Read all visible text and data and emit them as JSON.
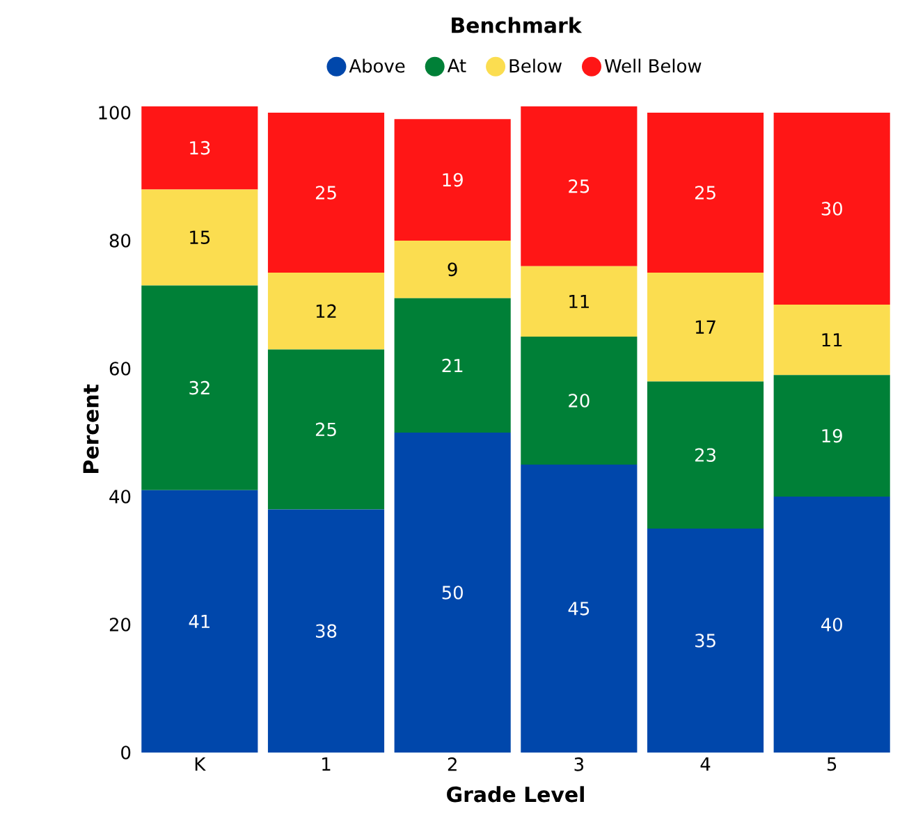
{
  "chart_data": {
    "type": "bar",
    "stacked": true,
    "legend_title": "Benchmark",
    "xlabel": "Grade Level",
    "ylabel": "Percent",
    "categories": [
      "K",
      "1",
      "2",
      "3",
      "4",
      "5"
    ],
    "series": [
      {
        "name": "Above",
        "color": "#0047ab",
        "values": [
          41,
          38,
          50,
          45,
          35,
          40
        ]
      },
      {
        "name": "At",
        "color": "#008037",
        "values": [
          32,
          25,
          21,
          20,
          23,
          19
        ]
      },
      {
        "name": "Below",
        "color": "#fbdd50",
        "values": [
          15,
          12,
          9,
          11,
          17,
          11
        ]
      },
      {
        "name": "Well Below",
        "color": "#ff1616",
        "values": [
          13,
          25,
          19,
          25,
          25,
          30
        ]
      }
    ],
    "ylim": [
      0,
      101
    ],
    "yticks": [
      0,
      20,
      40,
      60,
      80,
      100
    ],
    "data_labels": true,
    "legend": "top",
    "grid": false
  }
}
